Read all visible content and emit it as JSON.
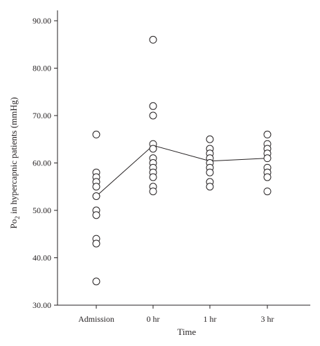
{
  "chart_data": {
    "type": "scatter",
    "title": "",
    "xlabel": "Time",
    "ylabel": {
      "prefix": "Po",
      "subscript": "2",
      "suffix": " in hypercapnic patients (mmHg)"
    },
    "categories": [
      "Admission",
      "0 hr",
      "1 hr",
      "3 hr"
    ],
    "ylim": [
      30,
      90
    ],
    "yticks": [
      "30.00",
      "40.00",
      "50.00",
      "60.00",
      "70.00",
      "80.00",
      "90.00"
    ],
    "grid": false,
    "points": [
      [
        66,
        58,
        57,
        56,
        55,
        53,
        50,
        49,
        44,
        43,
        35
      ],
      [
        86,
        72,
        70,
        64,
        63,
        61,
        60,
        59,
        58,
        57,
        55,
        54
      ],
      [
        65,
        63,
        62,
        61,
        60,
        59,
        58,
        56,
        55
      ],
      [
        66,
        64,
        63,
        62,
        61,
        59,
        58,
        57,
        54
      ]
    ],
    "mean_line": [
      53,
      63.7,
      60.4,
      61
    ],
    "style": {
      "ink": "#231f20",
      "background": "#ffffff"
    }
  }
}
